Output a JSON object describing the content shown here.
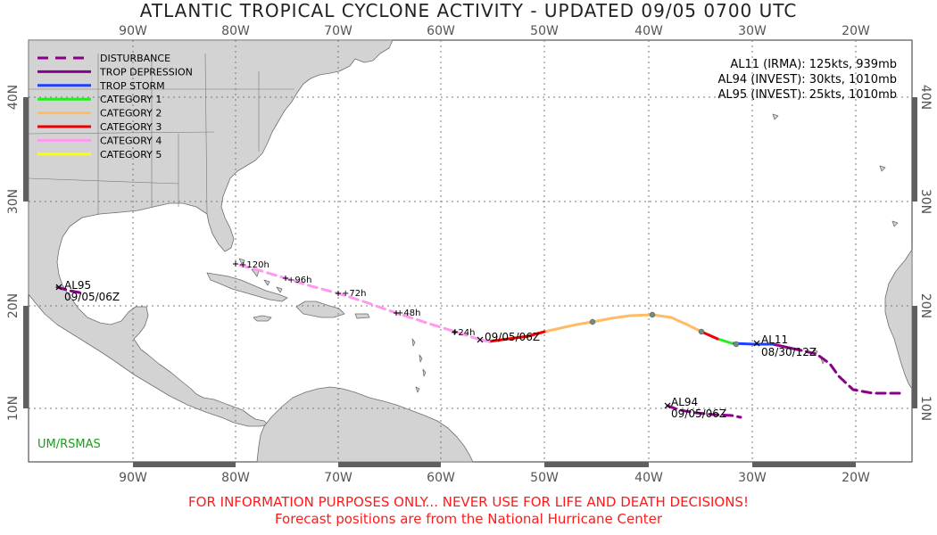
{
  "title": "ATLANTIC TROPICAL CYCLONE ACTIVITY - UPDATED 09/05 0700 UTC",
  "longitude_labels": [
    "90W",
    "80W",
    "70W",
    "60W",
    "50W",
    "40W",
    "30W",
    "20W"
  ],
  "latitude_labels": [
    "40N",
    "30N",
    "20N",
    "10N"
  ],
  "legend": [
    {
      "label": "DISTURBANCE",
      "color": "#8b008b",
      "dashed": true
    },
    {
      "label": "TROP DEPRESSION",
      "color": "#8b008b",
      "dashed": false
    },
    {
      "label": "TROP STORM",
      "color": "#1f3fff",
      "dashed": false
    },
    {
      "label": "CATEGORY 1",
      "color": "#22ee22",
      "dashed": false
    },
    {
      "label": "CATEGORY 2",
      "color": "#ffbb66",
      "dashed": false
    },
    {
      "label": "CATEGORY 3",
      "color": "#ee0000",
      "dashed": false
    },
    {
      "label": "CATEGORY 4",
      "color": "#ff99ee",
      "dashed": false
    },
    {
      "label": "CATEGORY 5",
      "color": "#ffff00",
      "dashed": false
    }
  ],
  "storm_info": [
    "AL11 (IRMA): 125kts, 939mb",
    "AL94 (INVEST): 30kts, 1010mb",
    "AL95 (INVEST): 25kts, 1010mb"
  ],
  "storms": {
    "al11": {
      "name": "AL11",
      "start_date": "08/30/12Z",
      "current_date": "09/05/06Z"
    },
    "al94": {
      "name": "AL94",
      "date": "09/05/06Z"
    },
    "al95": {
      "name": "AL95",
      "date": "09/05/06Z"
    }
  },
  "forecast_labels": [
    "+24h",
    "+48h",
    "+72h",
    "+96h",
    "+120h"
  ],
  "credit": "UM/RSMAS",
  "disclaimer": {
    "line1": "FOR INFORMATION PURPOSES ONLY... NEVER USE FOR LIFE AND DEATH DECISIONS!",
    "line2": "Forecast positions are from the National Hurricane Center"
  },
  "colors": {
    "land": "#d3d3d3",
    "coast": "#6e6e6e",
    "grid": "#7a7a7a",
    "frame_bar": "#5f5f5f",
    "disclaimer": "#ff1a1a",
    "credit": "#1a9e1a"
  }
}
